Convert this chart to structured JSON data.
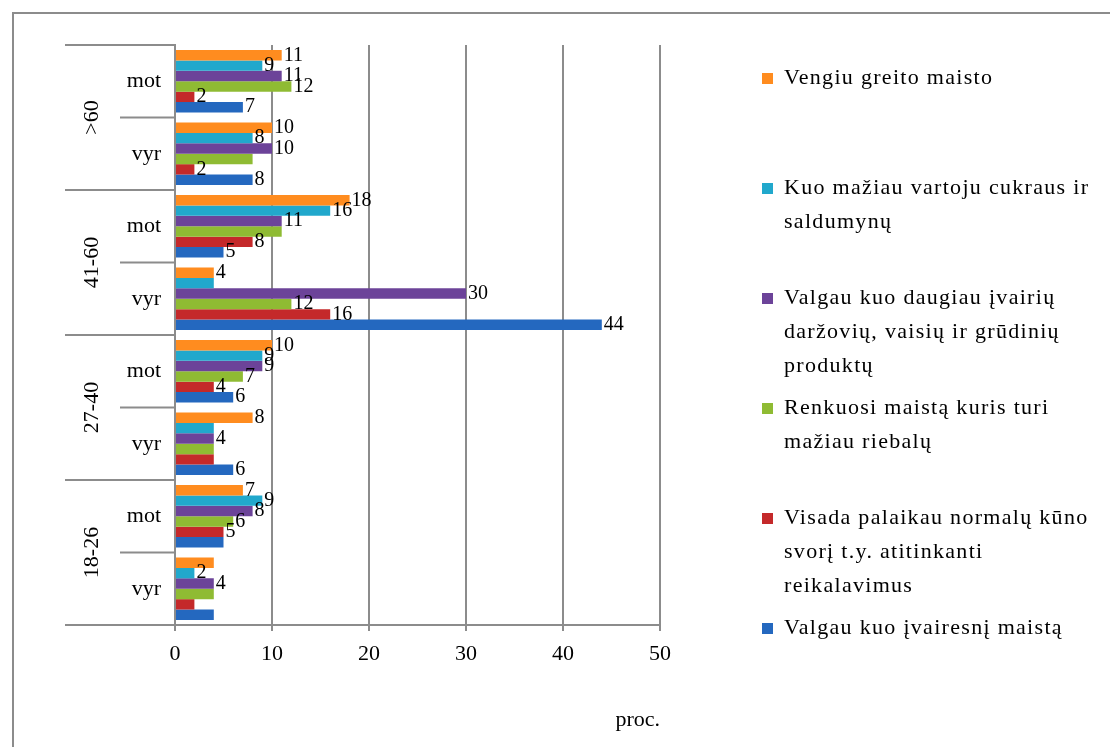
{
  "chart_data": {
    "type": "bar",
    "orientation": "horizontal",
    "categories": [
      "mot",
      "vyr",
      "mot",
      "vyr",
      "mot",
      "vyr",
      "mot",
      "vyr"
    ],
    "annotations": [
      ">60",
      "41-60",
      "27-40",
      "18-26"
    ],
    "series": [
      {
        "name": "Vengiu greito maisto",
        "color": "#ff8c1f",
        "values": [
          11,
          10,
          18,
          4,
          10,
          8,
          7,
          4
        ],
        "value_labels": [
          "11",
          "10",
          "18",
          "4",
          "10",
          "8",
          "7",
          null
        ]
      },
      {
        "name": "Kuo mažiau vartoju cukraus ir saldumynų",
        "color": "#21a8cc",
        "values": [
          9,
          8,
          16,
          4,
          9,
          4,
          9,
          2
        ],
        "value_labels": [
          "9",
          "8",
          "16",
          null,
          "9",
          null,
          "9",
          "2"
        ]
      },
      {
        "name": "Valgau kuo daugiau įvairių daržovių, vaisių ir grūdinių produktų",
        "color": "#6c4399",
        "values": [
          11,
          10,
          11,
          30,
          9,
          4,
          8,
          4
        ],
        "value_labels": [
          "11",
          "10",
          "11",
          "30",
          "9",
          "4",
          "8",
          "4"
        ]
      },
      {
        "name": "Renkuosi maistą kuris turi mažiau riebalų",
        "color": "#8fbb33",
        "values": [
          12,
          8,
          11,
          12,
          7,
          4,
          6,
          4
        ],
        "value_labels": [
          "12",
          null,
          null,
          "12",
          "7",
          null,
          "6",
          null
        ]
      },
      {
        "name": "Visada palaikau normalų kūno svorį t.y. atitinkanti reikalavimus",
        "color": "#c4292a",
        "values": [
          2,
          2,
          8,
          16,
          4,
          4,
          5,
          2
        ],
        "value_labels": [
          "2",
          "2",
          "8",
          "16",
          "4",
          null,
          "5",
          null
        ]
      },
      {
        "name": "Valgau kuo įvairesnį maistą",
        "color": "#2468bf",
        "values": [
          7,
          8,
          5,
          44,
          6,
          6,
          5,
          4
        ],
        "value_labels": [
          "7",
          "8",
          "5",
          "44",
          "6",
          "6",
          null,
          null
        ]
      }
    ],
    "xlim": [
      0,
      50
    ],
    "xticks": [
      0,
      10,
      20,
      30,
      40,
      50
    ],
    "xlabel": "proc.",
    "grid": "x",
    "legend": "right"
  }
}
